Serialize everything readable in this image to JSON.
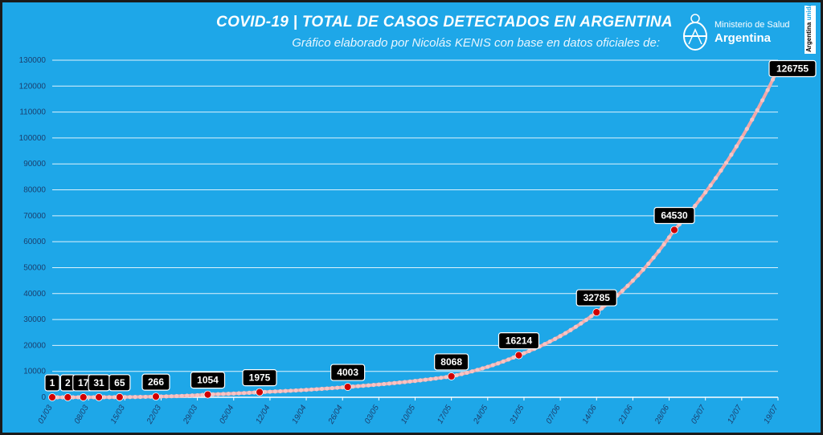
{
  "header": {
    "title": "COVID-19  |  TOTAL DE CASOS DETECTADOS EN ARGENTINA",
    "subtitle": "Gráfico elaborado por Nicolás KENIS con base en datos oficiales de:",
    "logo_line1": "Ministerio de Salud",
    "logo_line2": "Argentina",
    "side_tag_a": "Argentina",
    "side_tag_b": "unida"
  },
  "colors": {
    "background": "#1ea7e8",
    "line": "#f2a9a9",
    "point": "#d10000",
    "label_bg": "#000000"
  },
  "chart_data": {
    "type": "line",
    "title": "COVID-19  |  TOTAL DE CASOS DETECTADOS EN ARGENTINA",
    "xlabel": "",
    "ylabel": "",
    "ylim": [
      0,
      130000
    ],
    "y_ticks": [
      0,
      10000,
      20000,
      30000,
      40000,
      50000,
      60000,
      70000,
      80000,
      90000,
      100000,
      110000,
      120000,
      130000
    ],
    "x_start": "01/03",
    "x_end": "19/07",
    "x_ticks": [
      "01/03",
      "08/03",
      "15/03",
      "22/03",
      "29/03",
      "05/04",
      "12/04",
      "19/04",
      "26/04",
      "03/05",
      "10/05",
      "17/05",
      "24/05",
      "31/05",
      "07/06",
      "14/06",
      "21/06",
      "28/06",
      "05/07",
      "12/07",
      "19/07"
    ],
    "grid": true,
    "series": [
      {
        "name": "",
        "points": [
          {
            "x": "01/03",
            "y": 1
          },
          {
            "x": "04/03",
            "y": 2
          },
          {
            "x": "07/03",
            "y": 17
          },
          {
            "x": "10/03",
            "y": 31
          },
          {
            "x": "14/03",
            "y": 65
          },
          {
            "x": "21/03",
            "y": 266
          },
          {
            "x": "31/03",
            "y": 1054
          },
          {
            "x": "10/04",
            "y": 1975
          },
          {
            "x": "27/04",
            "y": 4003
          },
          {
            "x": "17/05",
            "y": 8068
          },
          {
            "x": "30/05",
            "y": 16214
          },
          {
            "x": "14/06",
            "y": 32785
          },
          {
            "x": "29/06",
            "y": 64530
          },
          {
            "x": "19/07",
            "y": 126755
          }
        ]
      }
    ],
    "annotations": [
      "1",
      "2",
      "17",
      "31",
      "65",
      "266",
      "1054",
      "1975",
      "4003",
      "8068",
      "16214",
      "32785",
      "64530",
      "126755"
    ]
  }
}
